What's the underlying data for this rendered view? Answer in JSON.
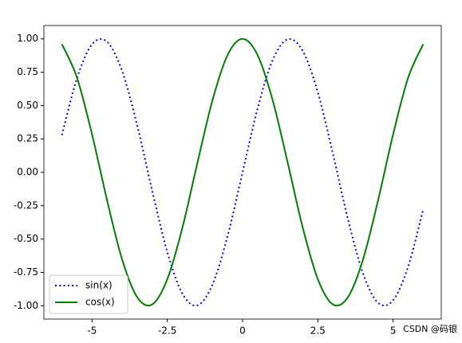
{
  "chart_data": {
    "type": "line",
    "x": [
      -6,
      -5.5,
      -5,
      -4.5,
      -4,
      -3.5,
      -3,
      -2.5,
      -2,
      -1.5,
      -1,
      -0.5,
      0,
      0.5,
      1,
      1.5,
      2,
      2.5,
      3,
      3.5,
      4,
      4.5,
      5,
      5.5,
      6
    ],
    "series": [
      {
        "name": "sin(x)",
        "color": "#0000ff",
        "style": "dotted",
        "values": [
          0.279,
          0.706,
          0.959,
          0.978,
          0.757,
          0.351,
          -0.141,
          -0.598,
          -0.909,
          -0.997,
          -0.841,
          -0.479,
          0,
          0.479,
          0.841,
          0.997,
          0.909,
          0.598,
          0.141,
          -0.351,
          -0.757,
          -0.978,
          -0.959,
          -0.706,
          -0.279
        ]
      },
      {
        "name": "cos(x)",
        "color": "#008000",
        "style": "solid",
        "values": [
          0.96,
          0.709,
          0.284,
          -0.211,
          -0.654,
          -0.936,
          -0.99,
          -0.801,
          -0.416,
          0.071,
          0.54,
          0.878,
          1,
          0.878,
          0.54,
          0.071,
          -0.416,
          -0.801,
          -0.99,
          -0.936,
          -0.654,
          -0.211,
          0.284,
          0.709,
          0.96
        ]
      }
    ],
    "xlim": [
      -6.6,
      6.6
    ],
    "xticks": [
      -5,
      -2.5,
      0,
      2.5,
      5
    ],
    "ylim": [
      -1.1,
      1.1
    ],
    "yticks": [
      {
        "value": -1,
        "label": "-1.00"
      },
      {
        "value": -0.75,
        "label": "-0.75"
      },
      {
        "value": -0.5,
        "label": "-0.50"
      },
      {
        "value": -0.25,
        "label": "-0.25"
      },
      {
        "value": 0,
        "label": "0.00"
      },
      {
        "value": 0.25,
        "label": "0.25"
      },
      {
        "value": 0.5,
        "label": "0.50"
      },
      {
        "value": 0.75,
        "label": "0.75"
      },
      {
        "value": 1,
        "label": "1.00"
      }
    ],
    "legend": "lower left",
    "watermark": "CSDN @码银"
  }
}
